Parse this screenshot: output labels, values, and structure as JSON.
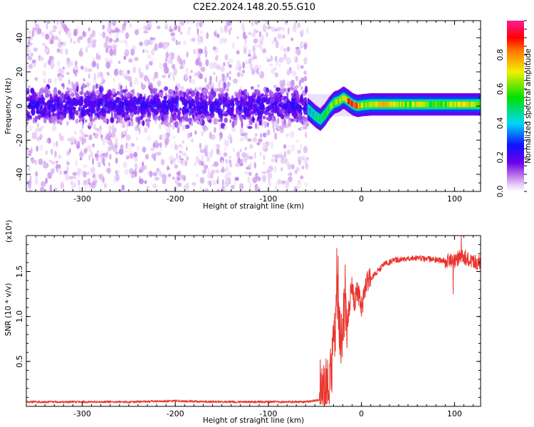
{
  "title": "C2E2.2024.148.20.55.G10",
  "chart_data": [
    {
      "type": "heatmap",
      "xlabel": "Height of straight line (km)",
      "ylabel": "Frequency (Hz)",
      "xlim": [
        -360,
        128
      ],
      "ylim": [
        -50,
        50
      ],
      "xticks": [
        -300,
        -200,
        -100,
        0,
        100
      ],
      "yticks": [
        -40,
        -20,
        0,
        20,
        40
      ],
      "colorbar": {
        "label": "Normalized spectral amplitude",
        "range": [
          0.0,
          1.0
        ],
        "ticks": [
          0.0,
          0.2,
          0.4,
          0.6,
          0.8
        ],
        "colormap": "rainbow: white → violet → blue → cyan → green → yellow → orange → red → magenta"
      },
      "noise_region": {
        "x_range": [
          -360,
          -58
        ],
        "core_frequency_band": [
          -10,
          10
        ],
        "core_amplitude": 0.15
      },
      "signal_track": {
        "x": [
          -58,
          -50,
          -45,
          -40,
          -35,
          -30,
          -25,
          -20,
          -15,
          -10,
          -5,
          0,
          10,
          20,
          30,
          40,
          50,
          60,
          70,
          80,
          90,
          100,
          110,
          120,
          128
        ],
        "frequency": [
          -2,
          -6,
          -8,
          -5,
          -1,
          2,
          3,
          5,
          3,
          1,
          0,
          0.5,
          1,
          1,
          1,
          1,
          1,
          1,
          1,
          1,
          1,
          1,
          1,
          1,
          1
        ],
        "amplitude": [
          0.3,
          0.45,
          0.5,
          0.5,
          0.55,
          0.6,
          0.65,
          0.7,
          0.85,
          0.9,
          0.85,
          0.6,
          0.65,
          0.75,
          0.7,
          0.65,
          0.6,
          0.7,
          0.6,
          0.55,
          0.6,
          0.65,
          0.75,
          0.6,
          0.55
        ]
      }
    },
    {
      "type": "line",
      "xlabel": "Height of straight line (km)",
      "ylabel": "SNR (10 * v/v)",
      "y_multiplier": "(x10^4)",
      "xlim": [
        -360,
        128
      ],
      "ylim": [
        0,
        19000
      ],
      "xticks": [
        -300,
        -200,
        -100,
        0,
        100
      ],
      "yticks": [
        0.5,
        1.0,
        1.5
      ],
      "color": "#e8352e",
      "series": [
        {
          "x": [
            -360,
            -300,
            -250,
            -200,
            -150,
            -100,
            -60,
            -45,
            -40,
            -35,
            -32,
            -30,
            -28,
            -26,
            -25,
            -24,
            -22,
            -20,
            -18,
            -15,
            -12,
            -10,
            -8,
            -5,
            -3,
            0,
            5,
            10,
            15,
            20,
            25,
            30,
            35,
            40,
            50,
            60,
            70,
            80,
            90,
            100,
            105,
            110,
            115,
            120,
            128
          ],
          "y": [
            500,
            500,
            500,
            600,
            500,
            500,
            500,
            700,
            1500,
            2500,
            4500,
            6500,
            9000,
            11500,
            12500,
            9500,
            7500,
            9500,
            11000,
            9500,
            12000,
            13500,
            11500,
            13000,
            12500,
            11000,
            13500,
            14200,
            14800,
            15300,
            15900,
            16000,
            16300,
            16300,
            16500,
            16500,
            16400,
            16300,
            16200,
            16200,
            16600,
            16700,
            16300,
            16100,
            16000
          ]
        }
      ]
    }
  ]
}
